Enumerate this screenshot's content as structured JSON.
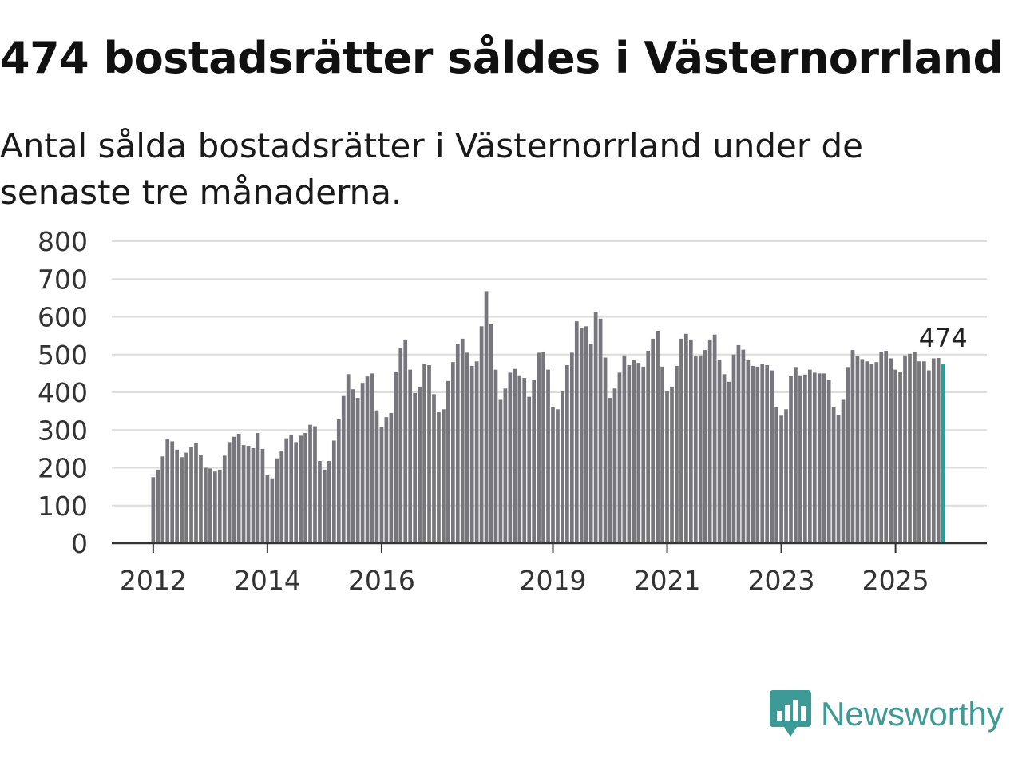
{
  "title": "474 bostadsrätter såldes i Västernorrland",
  "subtitle": "Antal sålda bostadsrätter i Västernorrland under de senaste tre månaderna.",
  "brand": {
    "name": "Newsworthy",
    "logo_icon": "newsworthy-bar-chart-icon"
  },
  "colors": {
    "bar": "#77767c",
    "highlight": "#1fa49c",
    "grid": "#dddddd",
    "axis": "#333333",
    "brand": "#3d9a96"
  },
  "chart_data": {
    "type": "bar",
    "title": "474 bostadsrätter såldes i Västernorrland",
    "xlabel": "",
    "ylabel": "",
    "ylim": [
      0,
      800
    ],
    "yticks": [
      "0",
      "100",
      "200",
      "300",
      "400",
      "500",
      "600",
      "700",
      "800"
    ],
    "xticks": [
      {
        "label": "2012",
        "index": 0
      },
      {
        "label": "2014",
        "index": 24
      },
      {
        "label": "2016",
        "index": 48
      },
      {
        "label": "2019",
        "index": 84
      },
      {
        "label": "2021",
        "index": 108
      },
      {
        "label": "2023",
        "index": 132
      },
      {
        "label": "2025",
        "index": 156
      }
    ],
    "start": "2012-01",
    "highlight_last": true,
    "last_value_label": "474",
    "values": [
      175,
      195,
      230,
      275,
      270,
      248,
      228,
      240,
      255,
      265,
      235,
      200,
      198,
      190,
      195,
      232,
      268,
      282,
      290,
      260,
      258,
      252,
      292,
      250,
      180,
      172,
      225,
      245,
      278,
      288,
      268,
      285,
      292,
      314,
      310,
      218,
      195,
      218,
      272,
      328,
      390,
      448,
      408,
      385,
      425,
      442,
      450,
      352,
      308,
      334,
      345,
      453,
      518,
      540,
      460,
      398,
      415,
      475,
      472,
      395,
      347,
      355,
      430,
      480,
      528,
      542,
      505,
      470,
      482,
      575,
      668,
      580,
      460,
      380,
      410,
      452,
      462,
      445,
      438,
      388,
      433,
      505,
      508,
      460,
      360,
      355,
      402,
      472,
      505,
      588,
      570,
      575,
      528,
      613,
      595,
      492,
      385,
      410,
      452,
      498,
      472,
      485,
      478,
      468,
      510,
      542,
      563,
      468,
      402,
      415,
      470,
      542,
      555,
      540,
      495,
      498,
      512,
      540,
      553,
      485,
      448,
      428,
      500,
      525,
      513,
      485,
      470,
      468,
      475,
      472,
      458,
      360,
      338,
      355,
      443,
      467,
      445,
      447,
      460,
      452,
      450,
      450,
      433,
      362,
      340,
      380,
      467,
      512,
      496,
      488,
      482,
      475,
      480,
      508,
      510,
      490,
      460,
      455,
      498,
      502,
      508,
      482,
      482,
      458,
      490,
      491,
      474
    ]
  }
}
